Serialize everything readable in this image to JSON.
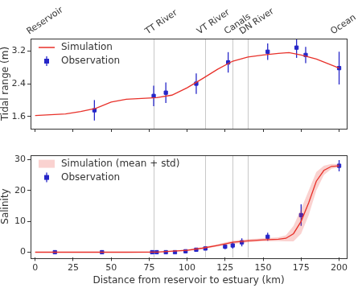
{
  "chart_data": [
    {
      "type": "line",
      "ylabel": "Tidal range (m)",
      "xlim": [
        -3,
        205
      ],
      "xticks": [
        0,
        25,
        50,
        75,
        100,
        125,
        150,
        175,
        200
      ],
      "ylim": [
        1.3,
        3.5
      ],
      "yticks": [
        1.6,
        2.4,
        3.2
      ],
      "grid": false,
      "legend": "upper left",
      "tick_labels": "y",
      "vlines": [
        78,
        112,
        130,
        140
      ],
      "annotations": [
        {
          "text": "Reservoir",
          "x": 0
        },
        {
          "text": "TT River",
          "x": 78
        },
        {
          "text": "VT River",
          "x": 112
        },
        {
          "text": "Canals",
          "x": 130
        },
        {
          "text": "DN River",
          "x": 140
        },
        {
          "text": "Ocean",
          "x": 200
        }
      ],
      "series": [
        {
          "name": "Simulation",
          "type": "line",
          "color": "#e8312a",
          "line_style": "solid",
          "x": [
            0,
            5,
            20,
            30,
            40,
            50,
            60,
            70,
            80,
            90,
            100,
            110,
            120,
            130,
            140,
            150,
            160,
            167,
            175,
            185,
            200
          ],
          "values": [
            1.62,
            1.63,
            1.66,
            1.72,
            1.8,
            1.95,
            2.02,
            2.04,
            2.06,
            2.12,
            2.3,
            2.52,
            2.75,
            2.95,
            3.05,
            3.1,
            3.14,
            3.16,
            3.1,
            3.0,
            2.78
          ]
        },
        {
          "name": "Observation",
          "type": "scatter",
          "color": "#2626c8",
          "marker": "square",
          "x": [
            39,
            78,
            86,
            106,
            127,
            153,
            172,
            178,
            200
          ],
          "values": [
            1.75,
            2.1,
            2.18,
            2.4,
            2.92,
            3.18,
            3.28,
            3.1,
            2.78
          ],
          "errors": [
            0.25,
            0.25,
            0.25,
            0.25,
            0.25,
            0.2,
            0.25,
            0.2,
            0.4
          ]
        }
      ]
    },
    {
      "type": "line",
      "xlabel": "Distance from reservoir to estuary (km)",
      "ylabel": "Salinity",
      "xlim": [
        -3,
        205
      ],
      "xticks": [
        0,
        25,
        50,
        75,
        100,
        125,
        150,
        175,
        200
      ],
      "ylim": [
        -1.8,
        31.5
      ],
      "yticks": [
        0,
        10,
        20,
        30
      ],
      "grid": false,
      "legend": "upper left",
      "vlines": [
        78,
        112,
        130,
        140
      ],
      "series": [
        {
          "name": "Simulation (mean + std)",
          "type": "band",
          "color": "#e8312a",
          "x": [
            0,
            60,
            80,
            100,
            110,
            120,
            130,
            140,
            150,
            160,
            165,
            170,
            175,
            180,
            185,
            190,
            195,
            200
          ],
          "values": [
            0,
            0,
            0.05,
            0.6,
            1.3,
            2.2,
            3.2,
            3.7,
            4.0,
            4.2,
            4.5,
            6,
            10,
            16,
            23,
            26.5,
            27.8,
            28
          ],
          "std": [
            0,
            0,
            0.1,
            0.3,
            0.3,
            0.4,
            0.5,
            0.5,
            0.5,
            0.6,
            1,
            2.5,
            4,
            4,
            3,
            1.5,
            0.8,
            0.5
          ]
        },
        {
          "name": "Observation",
          "type": "scatter",
          "color": "#2626c8",
          "marker": "square",
          "x": [
            13,
            44,
            77,
            80,
            86,
            92,
            99,
            106,
            112,
            125,
            130,
            136,
            153,
            175,
            200
          ],
          "values": [
            0,
            0,
            0,
            0,
            0,
            0,
            0.3,
            0.8,
            1.2,
            1.8,
            2.2,
            3.2,
            5,
            12,
            28
          ],
          "errors": [
            0.2,
            0.2,
            0.2,
            0.2,
            0.2,
            0.2,
            0.3,
            0.4,
            0.5,
            0.8,
            1.0,
            1.3,
            1.3,
            3.5,
            1.8
          ]
        }
      ]
    }
  ]
}
